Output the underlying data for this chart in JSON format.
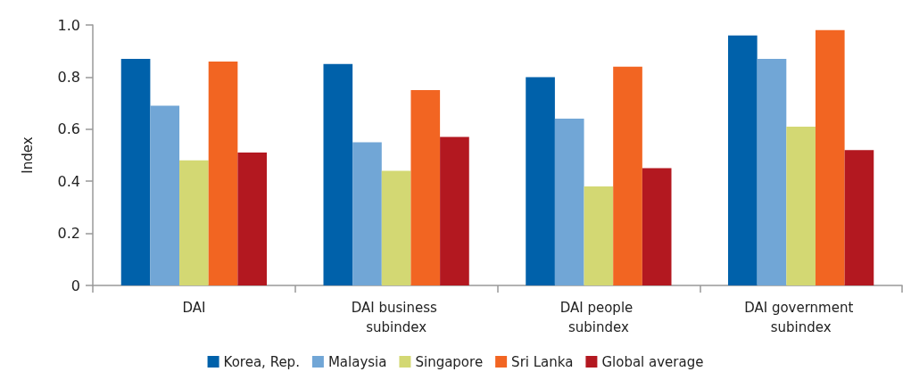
{
  "chart_data": {
    "type": "bar",
    "ylabel": "Index",
    "categories": [
      "DAI",
      "DAI business subindex",
      "DAI people subindex",
      "DAI government subindex"
    ],
    "series": [
      {
        "name": "Korea, Rep.",
        "color": "#0061aa",
        "values": [
          0.87,
          0.85,
          0.8,
          0.96
        ]
      },
      {
        "name": "Malaysia",
        "color": "#71a6d6",
        "values": [
          0.69,
          0.55,
          0.64,
          0.87
        ]
      },
      {
        "name": "Singapore",
        "color": "#d3d873",
        "values": [
          0.48,
          0.44,
          0.38,
          0.61
        ]
      },
      {
        "name": "Sri Lanka",
        "color": "#f26522",
        "values": [
          0.86,
          0.75,
          0.84,
          0.98
        ]
      },
      {
        "name": "Global average",
        "color": "#b31820",
        "values": [
          0.51,
          0.57,
          0.45,
          0.52
        ]
      }
    ],
    "ylim": [
      0,
      1
    ],
    "yticks": [
      0,
      {
        "value": 0.2,
        "label": "0.2"
      },
      {
        "value": 0.4,
        "label": "0.4"
      },
      {
        "value": 0.6,
        "label": "0.6"
      },
      {
        "value": 0.8,
        "label": "0.8"
      },
      {
        "value": 1,
        "label": "1.0"
      }
    ],
    "grid": false,
    "legend": "bottom"
  }
}
